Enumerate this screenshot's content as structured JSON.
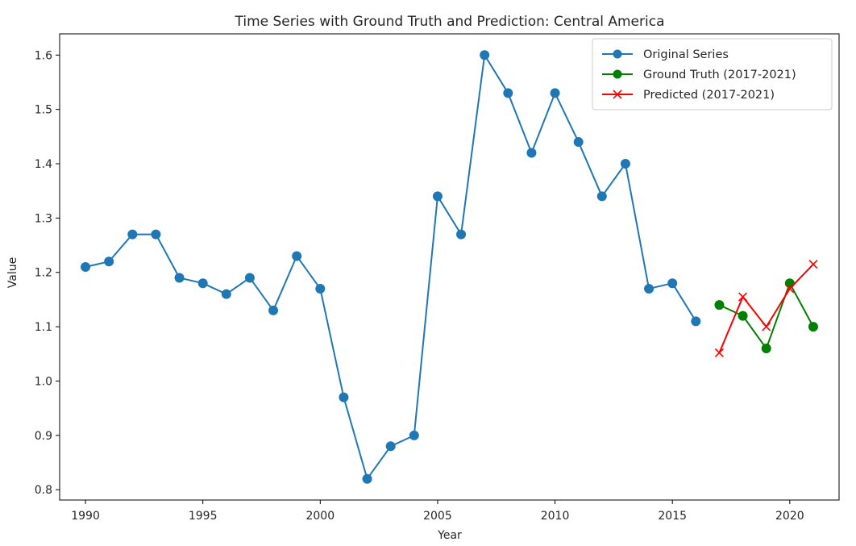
{
  "chart_data": {
    "type": "line",
    "title": "Time Series with Ground Truth and Prediction: Central America",
    "xlabel": "Year",
    "ylabel": "Value",
    "xlim": [
      1988.9,
      2022.1
    ],
    "ylim": [
      0.781,
      1.639
    ],
    "xticks": [
      1990,
      1995,
      2000,
      2005,
      2010,
      2015,
      2020
    ],
    "yticks": [
      0.8,
      0.9,
      1.0,
      1.1,
      1.2,
      1.3,
      1.4,
      1.5,
      1.6
    ],
    "ytick_labels": [
      "0.8",
      "0.9",
      "1.0",
      "1.1",
      "1.2",
      "1.3",
      "1.4",
      "1.5",
      "1.6"
    ],
    "grid": false,
    "legend_position": "upper right",
    "series": [
      {
        "name": "Original Series",
        "color": "#1f77b4",
        "marker": "circle",
        "x": [
          1990,
          1991,
          1992,
          1993,
          1994,
          1995,
          1996,
          1997,
          1998,
          1999,
          2000,
          2001,
          2002,
          2003,
          2004,
          2005,
          2006,
          2007,
          2008,
          2009,
          2010,
          2011,
          2012,
          2013,
          2014,
          2015,
          2016
        ],
        "values": [
          1.21,
          1.22,
          1.27,
          1.27,
          1.19,
          1.18,
          1.16,
          1.19,
          1.13,
          1.23,
          1.17,
          0.97,
          0.82,
          0.88,
          0.9,
          1.34,
          1.27,
          1.6,
          1.53,
          1.42,
          1.53,
          1.44,
          1.34,
          1.4,
          1.17,
          1.18,
          1.11
        ]
      },
      {
        "name": "Ground Truth (2017-2021)",
        "color": "#008000",
        "marker": "circle",
        "x": [
          2017,
          2018,
          2019,
          2020,
          2021
        ],
        "values": [
          1.14,
          1.12,
          1.06,
          1.18,
          1.1
        ]
      },
      {
        "name": "Predicted (2017-2021)",
        "color": "#ff0000",
        "marker": "x",
        "x": [
          2017,
          2018,
          2019,
          2020,
          2021
        ],
        "values": [
          1.052,
          1.155,
          1.1,
          1.17,
          1.215
        ]
      }
    ]
  }
}
